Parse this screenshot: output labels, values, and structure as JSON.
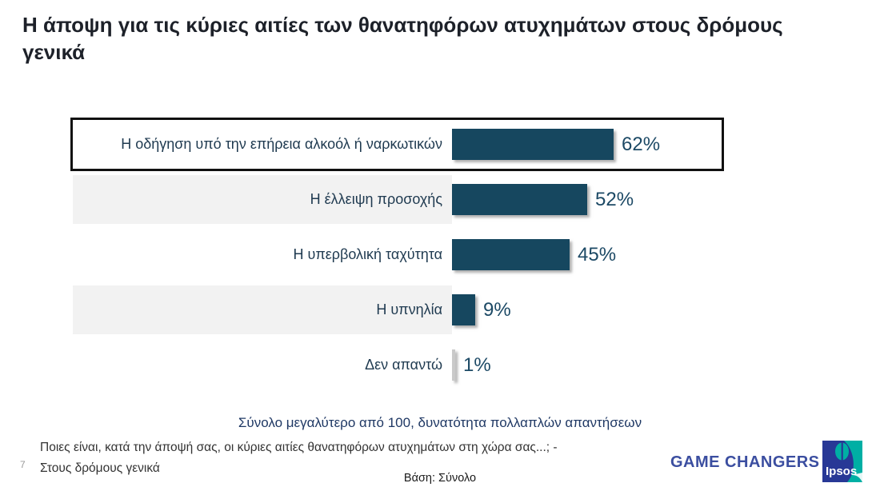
{
  "slide": {
    "title": "Η άποψη για τις κύριες αιτίες των θανατηφόρων ατυχημάτων στους δρόμους γενικά",
    "note_total": "Σύνολο μεγαλύτερο από 100, δυνατότητα πολλαπλών απαντήσεων",
    "footnote_line1": "Ποιες είναι, κατά την άποψή σας, οι κύριες αιτίες θανατηφόρων ατυχημάτων στη χώρα σας...;  -",
    "footnote_line2": "Στους δρόμους γενικά",
    "base_label": "Βάση: Σύνολο",
    "page_number": "7",
    "brand_text": "GAME CHANGERS",
    "logo_text": "Ipsos"
  },
  "chart_data": {
    "type": "bar",
    "orientation": "horizontal",
    "title": "Η άποψη για τις κύριες αιτίες των θανατηφόρων ατυχημάτων στους δρόμους γενικά",
    "categories": [
      "Η οδήγηση υπό την επήρεια αλκοόλ ή ναρκωτικών",
      "Η έλλειψη προσοχής",
      "Η υπερβολική ταχύτητα",
      "Η υπνηλία",
      "Δεν απαντώ"
    ],
    "values": [
      62,
      52,
      45,
      9,
      1
    ],
    "labels": [
      "62%",
      "52%",
      "45%",
      "9%",
      "1%"
    ],
    "value_suffix": "%",
    "xlim": [
      0,
      100
    ],
    "grid": false,
    "legend": false,
    "highlighted_index": 0,
    "muted_indices": [
      4
    ],
    "bar_color": "#16475F",
    "muted_bar_color": "#C9C9C9",
    "stripe_color": "#F2F2F2",
    "highlight_border_color": "#111111"
  },
  "colors": {
    "title_text": "#1D2129",
    "label_text": "#1F3A50",
    "value_text": "#1C4965",
    "note_text": "#1F3864",
    "footnote_text": "#333333",
    "brand_blue": "#3B4EA0",
    "ipsos_blue": "#283896",
    "ipsos_teal": "#00AFA4"
  }
}
